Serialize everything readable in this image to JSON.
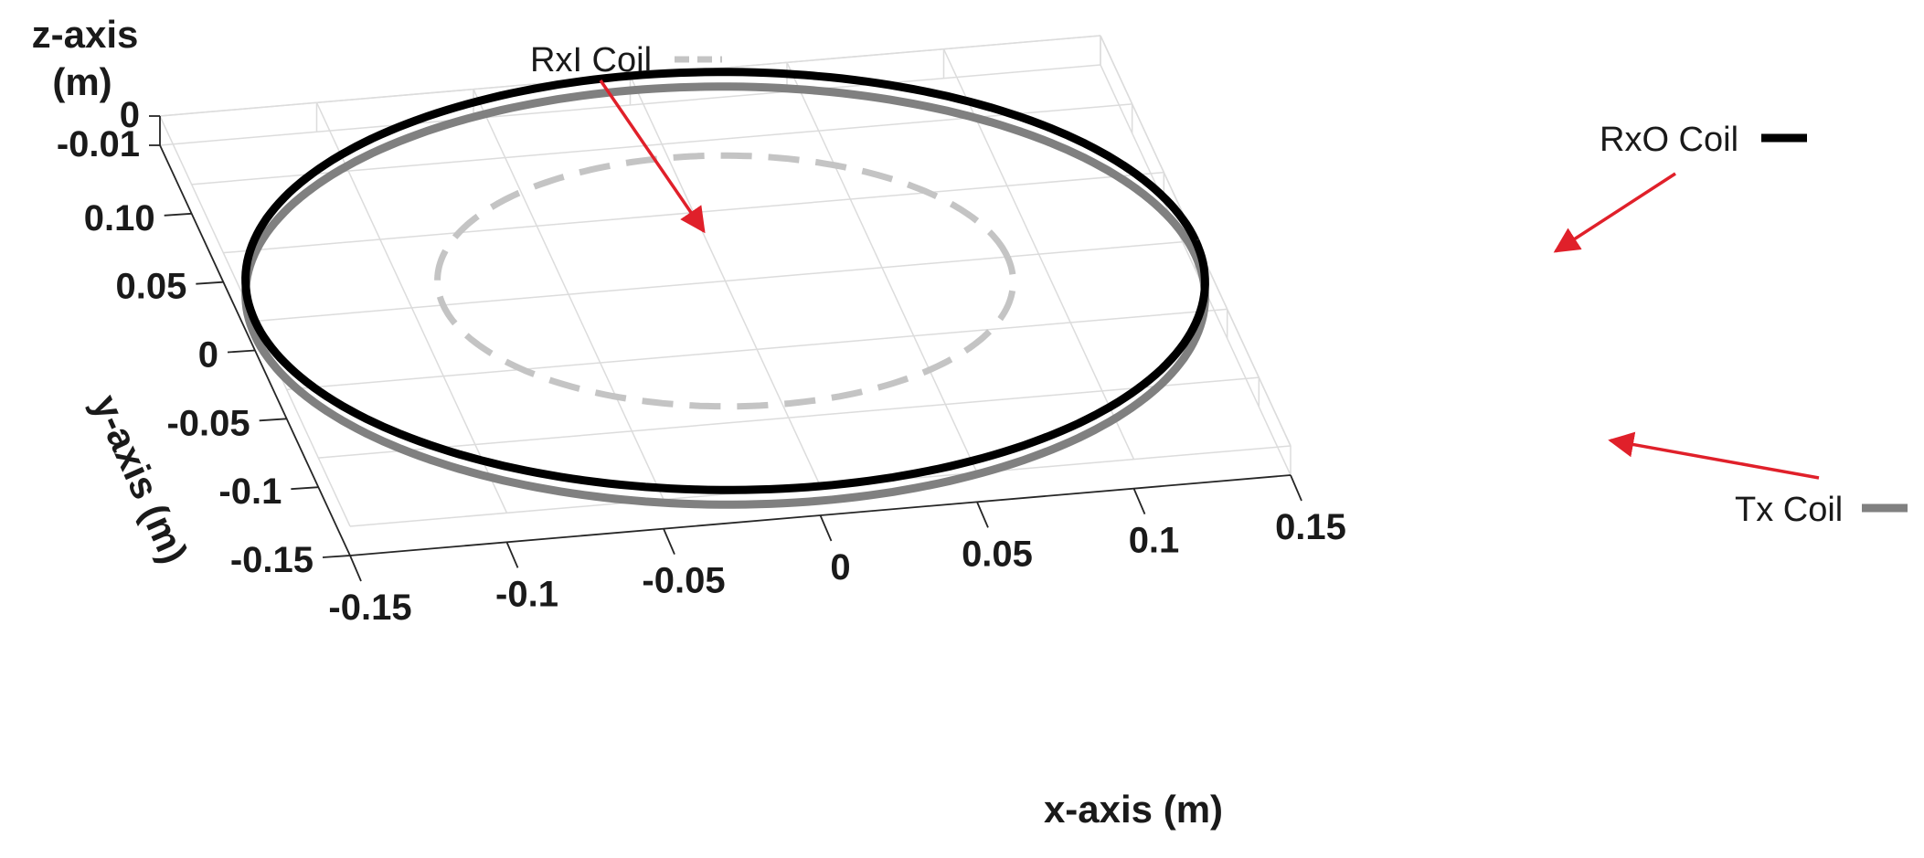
{
  "chart_data": {
    "type": "line",
    "projection": "3d",
    "grid": true,
    "xlabel": "x-axis (m)",
    "ylabel": "y-axis (m)",
    "zlabel_lines": [
      "z-axis",
      "(m)"
    ],
    "xlim": [
      -0.15,
      0.15
    ],
    "ylim": [
      -0.15,
      0.15
    ],
    "zlim": [
      -0.01,
      0
    ],
    "xticks": [
      -0.15,
      -0.1,
      -0.05,
      0,
      0.05,
      0.1,
      0.15
    ],
    "yticks": [
      -0.15,
      -0.1,
      -0.05,
      0,
      0.05,
      0.1
    ],
    "zticks": [
      -0.01,
      0
    ],
    "x_tick_labels": [
      "-0.15",
      "-0.1",
      "-0.05",
      "0",
      "0.05",
      "0.1",
      "0.15"
    ],
    "y_tick_labels": [
      "-0.15",
      "-0.1",
      "-0.05",
      "0",
      "0.05",
      "0.10"
    ],
    "z_tick_labels": [
      "-0.01",
      "0"
    ],
    "series": [
      {
        "name": "RxI Coil",
        "shape": "circle",
        "center": [
          0,
          0
        ],
        "radius": 0.09,
        "z": 0,
        "color": "#c4c4c4",
        "style": "dashed"
      },
      {
        "name": "RxO Coil",
        "shape": "circle",
        "center": [
          0,
          0
        ],
        "radius": 0.15,
        "z": 0,
        "color": "#000000",
        "style": "solid"
      },
      {
        "name": "Tx Coil",
        "shape": "circle",
        "center": [
          0,
          0
        ],
        "radius": 0.15,
        "z": -0.005,
        "color": "#808080",
        "style": "solid"
      }
    ],
    "annotation_color": "#e0202a"
  }
}
